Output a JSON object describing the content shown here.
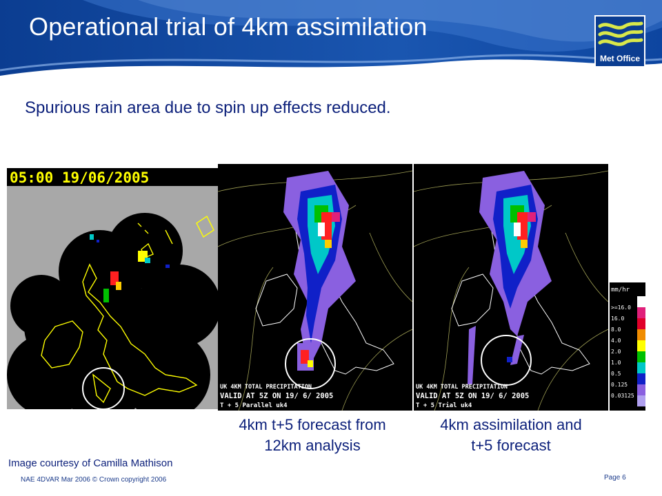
{
  "slide": {
    "title": "Operational trial of 4km assimilation",
    "subtitle": "Spurious rain area due to spin up effects reduced.",
    "logo_text": "Met Office",
    "credit": "Image courtesy of Camilla Mathison",
    "footer": "NAE 4DVAR Mar 2006 © Crown copyright 2006",
    "page_number": "Page 6"
  },
  "panels": {
    "radar": {
      "timestamp": "05:00 19/06/2005"
    },
    "forecast_12km": {
      "label_line1": "UK 4KM TOTAL PRECIPITATION",
      "label_line2": "VALID AT 5Z ON 19/ 6/ 2005",
      "label_line3": "T + 5  Parallel uk4",
      "caption_line1": "4km t+5 forecast from",
      "caption_line2": "12km analysis"
    },
    "assimilation_4km": {
      "label_line1": "UK 4KM TOTAL PRECIPITATION",
      "label_line2": "VALID AT 5Z ON 19/ 6/ 2005",
      "label_line3": "T + 5  Trial uk4",
      "caption_line1": "4km assimilation and",
      "caption_line2": "t+5 forecast"
    }
  },
  "color_scale": {
    "unit": "mm/hr",
    "labels": [
      ">=16.0",
      "16.0",
      "8.0",
      "4.0",
      "2.0",
      "1.0",
      "0.5",
      "0.125",
      "0.03125"
    ],
    "colors": [
      "#ffffff",
      "#e0207a",
      "#e0002a",
      "#f08c00",
      "#ffff00",
      "#00c000",
      "#00c8c8",
      "#1020c8",
      "#8a60e0",
      "#b0a0f0"
    ]
  },
  "colors": {
    "header_dark": "#0b3d91",
    "header_light": "#4a7fd0",
    "text_blue": "#0b1f7a"
  }
}
